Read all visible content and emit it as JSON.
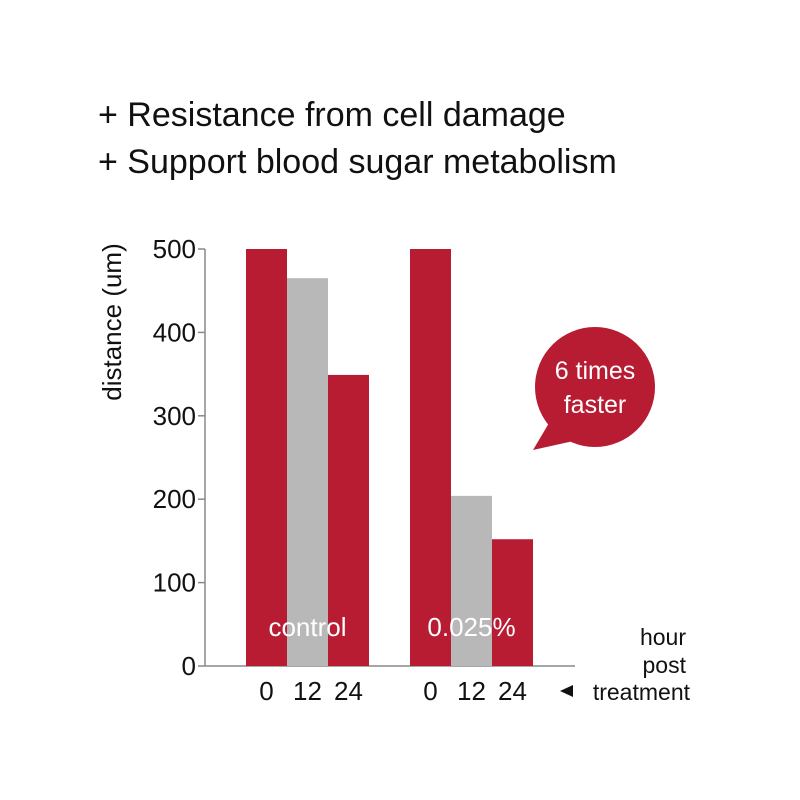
{
  "headline": {
    "line1": "+ Resistance from cell damage",
    "line2": "+ Support blood sugar metabolism"
  },
  "chart_data": {
    "type": "bar",
    "ylabel": "distance (um)",
    "ylim": [
      0,
      500
    ],
    "yticks": [
      0,
      100,
      200,
      300,
      400,
      500
    ],
    "grid": false,
    "x_unit": [
      "hour",
      "post",
      "treatment"
    ],
    "groups": [
      {
        "label": "control",
        "bars": [
          {
            "x": "0",
            "value": 500,
            "color": "#b81c33"
          },
          {
            "x": "12",
            "value": 465,
            "color": "#b8b8b8"
          },
          {
            "x": "24",
            "value": 349,
            "color": "#b81c33"
          }
        ]
      },
      {
        "label": "0.025%",
        "bars": [
          {
            "x": "0",
            "value": 500,
            "color": "#b81c33"
          },
          {
            "x": "12",
            "value": 204,
            "color": "#b8b8b8"
          },
          {
            "x": "24",
            "value": 152,
            "color": "#b81c33"
          }
        ]
      }
    ],
    "annotation": {
      "lines": [
        "6 times",
        "faster"
      ],
      "color": "#b81c33"
    }
  }
}
